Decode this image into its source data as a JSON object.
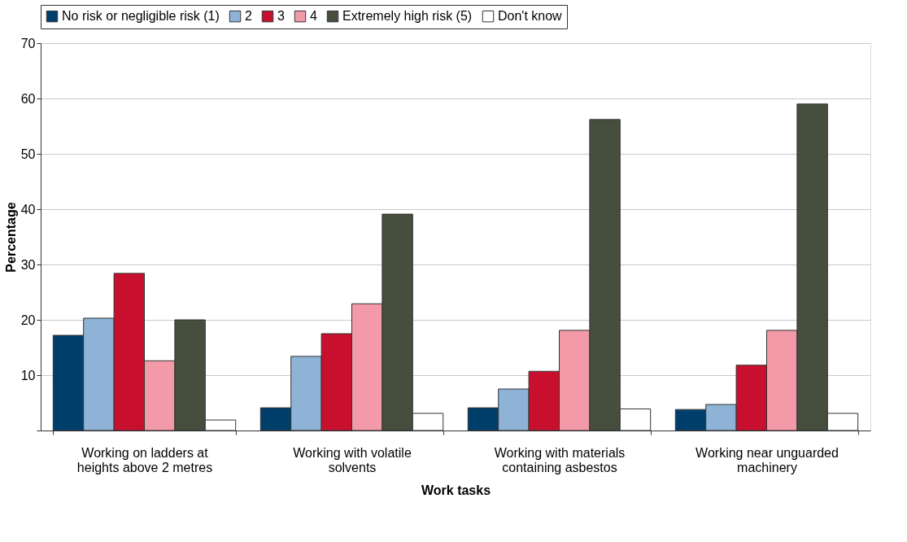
{
  "chart_data": {
    "type": "bar",
    "xlabel": "Work tasks",
    "ylabel": "Percentage",
    "categories": [
      "Working on ladders at heights above 2 metres",
      "Working with volatile solvents",
      "Working with materials containing asbestos",
      "Working near unguarded machinery"
    ],
    "series": [
      {
        "name": "No risk or negligible risk (1)",
        "color": "#003f6b",
        "values": [
          17.2,
          4.1,
          4.1,
          3.8
        ]
      },
      {
        "name": "2",
        "color": "#8fb3d6",
        "values": [
          20.3,
          13.4,
          7.5,
          4.7
        ]
      },
      {
        "name": "3",
        "color": "#c8102e",
        "values": [
          28.4,
          17.5,
          10.7,
          11.8
        ]
      },
      {
        "name": "4",
        "color": "#f29aa8",
        "values": [
          12.6,
          22.9,
          18.1,
          18.1
        ]
      },
      {
        "name": "Extremely high risk (5)",
        "color": "#464e3e",
        "values": [
          20.0,
          39.1,
          56.2,
          59.0
        ]
      },
      {
        "name": "Don't know",
        "color": "#ffffff",
        "values": [
          1.9,
          3.1,
          3.9,
          3.1
        ]
      }
    ],
    "ylim": [
      0,
      70
    ],
    "yticks": [
      {
        "value": 0,
        "label": null
      },
      10,
      20,
      30,
      40,
      50,
      60,
      70
    ],
    "grid": "y",
    "legend": "top"
  }
}
